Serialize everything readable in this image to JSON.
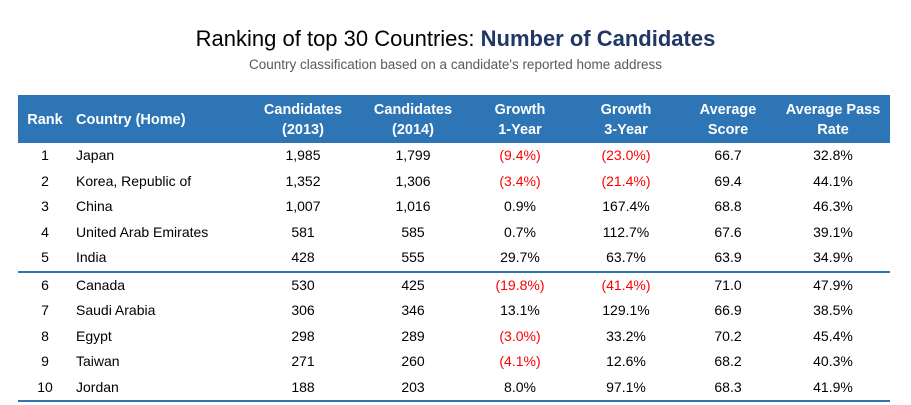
{
  "title": {
    "prefix": "Ranking of top 30 Countries: ",
    "emphasis": "Number of Candidates"
  },
  "subtitle": "Country classification based on a candidate's reported home address",
  "colors": {
    "header_bg": "#2e75b6",
    "title_emphasis": "#1f3864",
    "negative": "#ff0000"
  },
  "table": {
    "columns": [
      {
        "line1": "Rank",
        "line2": ""
      },
      {
        "line1": "Country (Home)",
        "line2": ""
      },
      {
        "line1": "Candidates",
        "line2": "(2013)"
      },
      {
        "line1": "Candidates",
        "line2": "(2014)"
      },
      {
        "line1": "Growth",
        "line2": "1-Year"
      },
      {
        "line1": "Growth",
        "line2": "3-Year"
      },
      {
        "line1": "Average",
        "line2": "Score"
      },
      {
        "line1": "Average Pass",
        "line2": "Rate"
      }
    ],
    "rows": [
      {
        "rank": "1",
        "country": "Japan",
        "c2013": "1,985",
        "c2014": "1,799",
        "g1": "(9.4%)",
        "g3": "(23.0%)",
        "score": "66.7",
        "pass": "32.8%"
      },
      {
        "rank": "2",
        "country": "Korea, Republic of",
        "c2013": "1,352",
        "c2014": "1,306",
        "g1": "(3.4%)",
        "g3": "(21.4%)",
        "score": "69.4",
        "pass": "44.1%"
      },
      {
        "rank": "3",
        "country": "China",
        "c2013": "1,007",
        "c2014": "1,016",
        "g1": "0.9%",
        "g3": "167.4%",
        "score": "68.8",
        "pass": "46.3%"
      },
      {
        "rank": "4",
        "country": "United Arab Emirates",
        "c2013": "581",
        "c2014": "585",
        "g1": "0.7%",
        "g3": "112.7%",
        "score": "67.6",
        "pass": "39.1%"
      },
      {
        "rank": "5",
        "country": "India",
        "c2013": "428",
        "c2014": "555",
        "g1": "29.7%",
        "g3": "63.7%",
        "score": "63.9",
        "pass": "34.9%"
      },
      {
        "rank": "6",
        "country": "Canada",
        "c2013": "530",
        "c2014": "425",
        "g1": "(19.8%)",
        "g3": "(41.4%)",
        "score": "71.0",
        "pass": "47.9%"
      },
      {
        "rank": "7",
        "country": "Saudi Arabia",
        "c2013": "306",
        "c2014": "346",
        "g1": "13.1%",
        "g3": "129.1%",
        "score": "66.9",
        "pass": "38.5%"
      },
      {
        "rank": "8",
        "country": "Egypt",
        "c2013": "298",
        "c2014": "289",
        "g1": "(3.0%)",
        "g3": "33.2%",
        "score": "70.2",
        "pass": "45.4%"
      },
      {
        "rank": "9",
        "country": "Taiwan",
        "c2013": "271",
        "c2014": "260",
        "g1": "(4.1%)",
        "g3": "12.6%",
        "score": "68.2",
        "pass": "40.3%"
      },
      {
        "rank": "10",
        "country": "Jordan",
        "c2013": "188",
        "c2014": "203",
        "g1": "8.0%",
        "g3": "97.1%",
        "score": "68.3",
        "pass": "41.9%"
      }
    ]
  }
}
